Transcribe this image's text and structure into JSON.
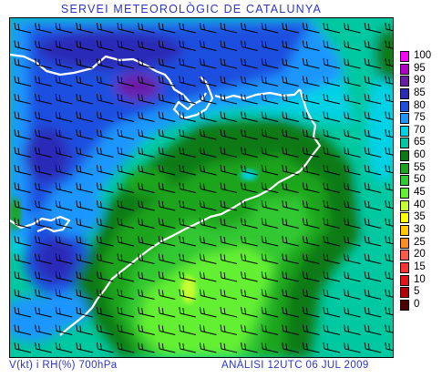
{
  "header": {
    "title": "SERVEI METEOROLÒGIC DE CATALUNYA"
  },
  "footer": {
    "variables": "V(kt) i RH(%) 700hPa",
    "analysis": "ANÀLISI 12UTC 06 JUL 2009"
  },
  "legend": {
    "items": [
      {
        "label": "100",
        "color": "#ff00ff"
      },
      {
        "label": "95",
        "color": "#b400c8"
      },
      {
        "label": "90",
        "color": "#6a1ea8"
      },
      {
        "label": "85",
        "color": "#2a2ab8"
      },
      {
        "label": "80",
        "color": "#1e50e0"
      },
      {
        "label": "75",
        "color": "#1e96ff"
      },
      {
        "label": "70",
        "color": "#00d2e6"
      },
      {
        "label": "65",
        "color": "#00c8a0"
      },
      {
        "label": "60",
        "color": "#0a7a14"
      },
      {
        "label": "55",
        "color": "#1ea51e"
      },
      {
        "label": "50",
        "color": "#32c832"
      },
      {
        "label": "45",
        "color": "#64f032"
      },
      {
        "label": "40",
        "color": "#c8ff32"
      },
      {
        "label": "35",
        "color": "#ffff00"
      },
      {
        "label": "30",
        "color": "#ffc800"
      },
      {
        "label": "25",
        "color": "#ff8c1e"
      },
      {
        "label": "20",
        "color": "#ff5a46"
      },
      {
        "label": "15",
        "color": "#ff3232"
      },
      {
        "label": "10",
        "color": "#e61414"
      },
      {
        "label": "5",
        "color": "#b40000"
      },
      {
        "label": "0",
        "color": "#500000"
      }
    ]
  },
  "map": {
    "coastline_color": "#ffffff",
    "barb_color": "#000000"
  }
}
